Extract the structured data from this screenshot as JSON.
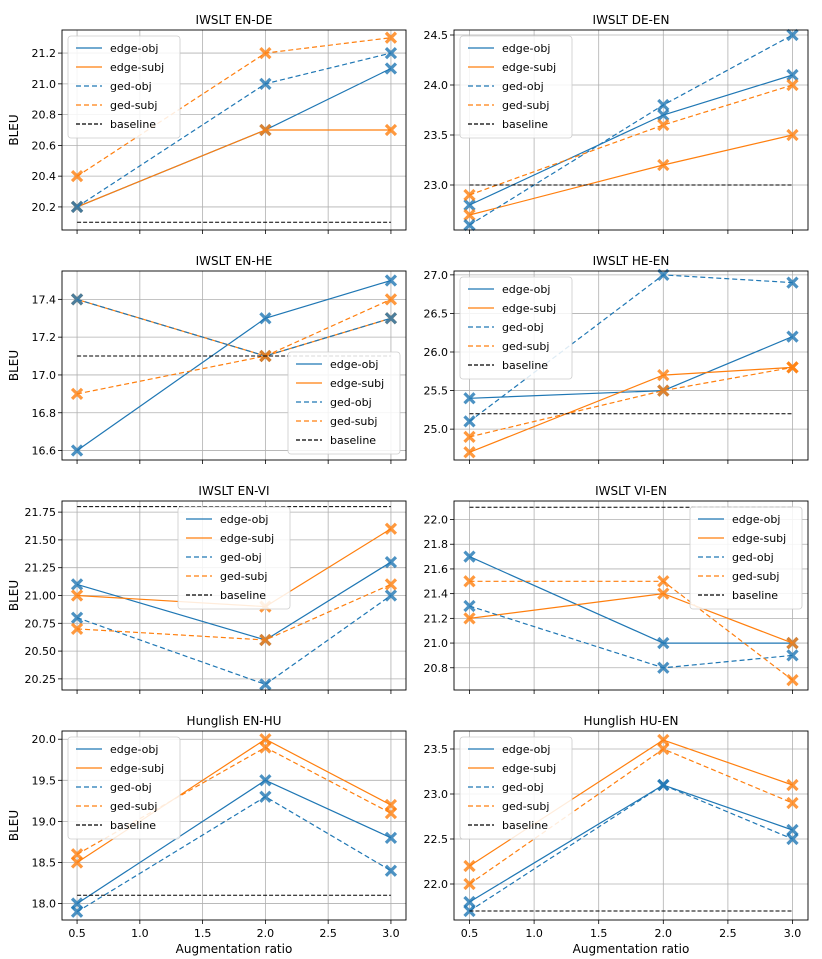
{
  "figure": {
    "x_label": "Augmentation ratio",
    "y_label": "BLEU",
    "colors": {
      "obj": "#1f77b4",
      "subj": "#ff7f0e",
      "baseline": "#000000",
      "grid": "#b0b0b0"
    }
  },
  "chart_data": [
    {
      "type": "line",
      "title": "IWSLT EN-DE",
      "x": [
        0.5,
        2.0,
        3.0
      ],
      "xticks": [],
      "yticks": [
        "20.2",
        "20.4",
        "20.6",
        "20.8",
        "21.0",
        "21.2"
      ],
      "ylim": [
        20.05,
        21.35
      ],
      "legend": "upper left",
      "series": [
        {
          "name": "edge-obj",
          "values": [
            20.2,
            20.7,
            21.1
          ]
        },
        {
          "name": "edge-subj",
          "values": [
            20.2,
            20.7,
            20.7
          ]
        },
        {
          "name": "ged-obj",
          "values": [
            20.2,
            21.0,
            21.2
          ]
        },
        {
          "name": "ged-subj",
          "values": [
            20.4,
            21.2,
            21.3
          ]
        },
        {
          "name": "baseline",
          "values": [
            20.1,
            20.1,
            20.1
          ]
        }
      ]
    },
    {
      "type": "line",
      "title": "IWSLT DE-EN",
      "x": [
        0.5,
        2.0,
        3.0
      ],
      "xticks": [],
      "yticks": [
        "23.0",
        "23.5",
        "24.0",
        "24.5"
      ],
      "ylim": [
        22.55,
        24.55
      ],
      "legend": "upper left",
      "series": [
        {
          "name": "edge-obj",
          "values": [
            22.8,
            23.7,
            24.1
          ]
        },
        {
          "name": "edge-subj",
          "values": [
            22.7,
            23.2,
            23.5
          ]
        },
        {
          "name": "ged-obj",
          "values": [
            22.6,
            23.8,
            24.5
          ]
        },
        {
          "name": "ged-subj",
          "values": [
            22.9,
            23.6,
            24.0
          ]
        },
        {
          "name": "baseline",
          "values": [
            23.0,
            23.0,
            23.0
          ]
        }
      ]
    },
    {
      "type": "line",
      "title": "IWSLT EN-HE",
      "x": [
        0.5,
        2.0,
        3.0
      ],
      "xticks": [],
      "yticks": [
        "16.6",
        "16.8",
        "17.0",
        "17.2",
        "17.4"
      ],
      "ylim": [
        16.55,
        17.55
      ],
      "legend": "lower right",
      "series": [
        {
          "name": "edge-obj",
          "values": [
            16.6,
            17.3,
            17.5
          ]
        },
        {
          "name": "edge-subj",
          "values": [
            17.4,
            17.1,
            17.3
          ]
        },
        {
          "name": "ged-obj",
          "values": [
            17.4,
            17.1,
            17.3
          ]
        },
        {
          "name": "ged-subj",
          "values": [
            16.9,
            17.1,
            17.4
          ]
        },
        {
          "name": "baseline",
          "values": [
            17.1,
            17.1,
            17.1
          ]
        }
      ]
    },
    {
      "type": "line",
      "title": "IWSLT HE-EN",
      "x": [
        0.5,
        2.0,
        3.0
      ],
      "xticks": [],
      "yticks": [
        "25.0",
        "25.5",
        "26.0",
        "26.5",
        "27.0"
      ],
      "ylim": [
        24.6,
        27.05
      ],
      "legend": "upper left",
      "series": [
        {
          "name": "edge-obj",
          "values": [
            25.4,
            25.5,
            26.2
          ]
        },
        {
          "name": "edge-subj",
          "values": [
            24.7,
            25.7,
            25.8
          ]
        },
        {
          "name": "ged-obj",
          "values": [
            25.1,
            27.0,
            26.9
          ]
        },
        {
          "name": "ged-subj",
          "values": [
            24.9,
            25.5,
            25.8
          ]
        },
        {
          "name": "baseline",
          "values": [
            25.2,
            25.2,
            25.2
          ]
        }
      ]
    },
    {
      "type": "line",
      "title": "IWSLT EN-VI",
      "x": [
        0.5,
        2.0,
        3.0
      ],
      "xticks": [],
      "yticks": [
        "20.25",
        "20.50",
        "20.75",
        "21.00",
        "21.25",
        "21.50",
        "21.75"
      ],
      "ylim": [
        20.15,
        21.85
      ],
      "legend": "upper center",
      "series": [
        {
          "name": "edge-obj",
          "values": [
            21.1,
            20.6,
            21.3
          ]
        },
        {
          "name": "edge-subj",
          "values": [
            21.0,
            20.9,
            21.6
          ]
        },
        {
          "name": "ged-obj",
          "values": [
            20.8,
            20.2,
            21.0
          ]
        },
        {
          "name": "ged-subj",
          "values": [
            20.7,
            20.6,
            21.1
          ]
        },
        {
          "name": "baseline",
          "values": [
            21.8,
            21.8,
            21.8
          ]
        }
      ]
    },
    {
      "type": "line",
      "title": "IWSLT VI-EN",
      "x": [
        0.5,
        2.0,
        3.0
      ],
      "xticks": [],
      "yticks": [
        "20.8",
        "21.0",
        "21.2",
        "21.4",
        "21.6",
        "21.8",
        "22.0"
      ],
      "ylim": [
        20.62,
        22.15
      ],
      "legend": "upper right",
      "series": [
        {
          "name": "edge-obj",
          "values": [
            21.7,
            21.0,
            21.0
          ]
        },
        {
          "name": "edge-subj",
          "values": [
            21.2,
            21.4,
            21.0
          ]
        },
        {
          "name": "ged-obj",
          "values": [
            21.3,
            20.8,
            20.9
          ]
        },
        {
          "name": "ged-subj",
          "values": [
            21.5,
            21.5,
            20.7
          ]
        },
        {
          "name": "baseline",
          "values": [
            22.1,
            22.1,
            22.1
          ]
        }
      ]
    },
    {
      "type": "line",
      "title": "Hunglish EN-HU",
      "x": [
        0.5,
        2.0,
        3.0
      ],
      "xticks": [
        "0.5",
        "1.0",
        "1.5",
        "2.0",
        "2.5",
        "3.0"
      ],
      "yticks": [
        "18.0",
        "18.5",
        "19.0",
        "19.5",
        "20.0"
      ],
      "ylim": [
        17.8,
        20.1
      ],
      "legend": "upper left",
      "series": [
        {
          "name": "edge-obj",
          "values": [
            18.0,
            19.5,
            18.8
          ]
        },
        {
          "name": "edge-subj",
          "values": [
            18.5,
            20.0,
            19.2
          ]
        },
        {
          "name": "ged-obj",
          "values": [
            17.9,
            19.3,
            18.4
          ]
        },
        {
          "name": "ged-subj",
          "values": [
            18.6,
            19.9,
            19.1
          ]
        },
        {
          "name": "baseline",
          "values": [
            18.1,
            18.1,
            18.1
          ]
        }
      ]
    },
    {
      "type": "line",
      "title": "Hunglish HU-EN",
      "x": [
        0.5,
        2.0,
        3.0
      ],
      "xticks": [
        "0.5",
        "1.0",
        "1.5",
        "2.0",
        "2.5",
        "3.0"
      ],
      "yticks": [
        "22.0",
        "22.5",
        "23.0",
        "23.5"
      ],
      "ylim": [
        21.6,
        23.7
      ],
      "legend": "upper left",
      "series": [
        {
          "name": "edge-obj",
          "values": [
            21.8,
            23.1,
            22.6
          ]
        },
        {
          "name": "edge-subj",
          "values": [
            22.2,
            23.6,
            23.1
          ]
        },
        {
          "name": "ged-obj",
          "values": [
            21.7,
            23.1,
            22.5
          ]
        },
        {
          "name": "ged-subj",
          "values": [
            22.0,
            23.5,
            22.9
          ]
        },
        {
          "name": "baseline",
          "values": [
            21.7,
            21.7,
            21.7
          ]
        }
      ]
    }
  ]
}
